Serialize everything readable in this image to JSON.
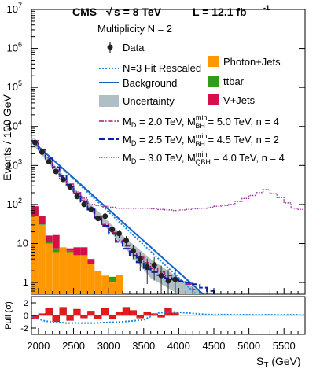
{
  "header": {
    "experiment": "CMS",
    "energy_prefix": "s = 8 TeV",
    "luminosity": "L = 12.1 fb",
    "luminosity_sup": "-1"
  },
  "colors": {
    "data": "#222222",
    "fit": "#1e88e5",
    "background": "#1565c0",
    "uncertainty": "#b0bec5",
    "photon_jets": "#ff9800",
    "ttbar": "#2e9d18",
    "v_jets": "#d50f4a",
    "bh1": "#b0156e",
    "bh2": "#0b1fa8",
    "qbh": "#a239a0",
    "pull": "#e41a1c"
  },
  "chart_data": [
    {
      "type": "bar",
      "title": "Multiplicity N = 2",
      "ylabel": "Events / 100 GeV",
      "xlabel": "S",
      "xlabel_sub": "T",
      "xlabel_unit": " (GeV)",
      "xlim": [
        1900,
        5800
      ],
      "ylim": [
        0.5,
        10000000
      ],
      "yscale": "log",
      "stacked_histogram": {
        "bin_width": 100,
        "bin_starts": [
          1900,
          2000,
          2100,
          2200,
          2300,
          2400,
          2500,
          2600,
          2700,
          2800,
          2900,
          3000,
          3100,
          3200
        ],
        "series": [
          {
            "name": "Photon+Jets",
            "values": [
              50,
              30,
              10,
              6,
              8,
              6,
              5,
              5,
              3,
              2,
              1.5,
              1,
              1.6,
              0
            ]
          },
          {
            "name": "ttbar",
            "values": [
              0,
              1,
              1,
              1.5,
              0,
              0.5,
              0,
              0,
              0,
              0,
              0,
              0.4,
              0,
              0
            ]
          },
          {
            "name": "V+Jets",
            "values": [
              40,
              20,
              5,
              9,
              0,
              1,
              3,
              3,
              1,
              0,
              0,
              0,
              0,
              0
            ]
          }
        ]
      },
      "data_points": [
        {
          "x": 1950,
          "y": 3900
        },
        {
          "x": 2050,
          "y": 2200
        },
        {
          "x": 2150,
          "y": 1250
        },
        {
          "x": 2250,
          "y": 700
        },
        {
          "x": 2350,
          "y": 440
        },
        {
          "x": 2450,
          "y": 280
        },
        {
          "x": 2550,
          "y": 160
        },
        {
          "x": 2650,
          "y": 100
        },
        {
          "x": 2750,
          "y": 75
        },
        {
          "x": 2850,
          "y": 44
        },
        {
          "x": 2950,
          "y": 50
        },
        {
          "x": 3050,
          "y": 23
        },
        {
          "x": 3150,
          "y": 18
        },
        {
          "x": 3250,
          "y": 12
        },
        {
          "x": 3350,
          "y": 6.5
        },
        {
          "x": 3450,
          "y": 4
        },
        {
          "x": 3550,
          "y": 2.5
        },
        {
          "x": 3650,
          "y": 2.8
        },
        {
          "x": 3750,
          "y": 1.5
        },
        {
          "x": 3850,
          "y": 1.1
        },
        {
          "x": 3950,
          "y": 1.2
        }
      ],
      "fit_curve": {
        "x": [
          1900,
          4250
        ],
        "y": [
          4600,
          0.5
        ]
      },
      "background_curve": {
        "x": [
          1900,
          4350
        ],
        "y": [
          4400,
          0.5
        ]
      },
      "uncertainty_band": {
        "x": [
          1900,
          2500,
          3200,
          3600,
          4000,
          4300
        ],
        "lower": [
          3800,
          200,
          9,
          1.3,
          0.5,
          0.5
        ],
        "upper": [
          5000,
          280,
          16,
          4,
          1.3,
          0.6
        ]
      },
      "signal_curves": [
        {
          "name": "M_D = 2.0 TeV, M_BH^min = 5.0 TeV, n = 4",
          "x": [
            1900,
            2500,
            3100,
            3600,
            3900,
            4100,
            4300
          ],
          "y": [
            4300,
            200,
            12,
            2.3,
            1.2,
            0.9,
            0.5
          ]
        },
        {
          "name": "M_D = 2.5 TeV, M_BH^min = 4.5 TeV, n = 2",
          "x": [
            1900,
            2500,
            3100,
            3500,
            3800,
            4200,
            4500
          ],
          "y": [
            4200,
            190,
            11,
            2.2,
            1.3,
            0.9,
            0.5
          ]
        },
        {
          "name": "M_D = 3.0 TeV, M_QBH^min = 4.0 TeV, n = 4",
          "x": [
            1900,
            2300,
            2700,
            3100,
            3500,
            3900,
            4300,
            4700,
            5000,
            5200,
            5400,
            5600,
            5800
          ],
          "y": [
            4000,
            440,
            100,
            80,
            80,
            70,
            80,
            100,
            170,
            240,
            150,
            80,
            70
          ]
        }
      ],
      "legend": {
        "entries": [
          {
            "key": "data",
            "label": "Data"
          },
          {
            "key": "fit",
            "label": "N=3 Fit Rescaled"
          },
          {
            "key": "background",
            "label": "Background"
          },
          {
            "key": "uncertainty",
            "label": "Uncertainty"
          },
          {
            "key": "photon_jets",
            "label": "Photon+Jets"
          },
          {
            "key": "ttbar",
            "label": "ttbar"
          },
          {
            "key": "v_jets",
            "label": "V+Jets"
          }
        ],
        "signals": [
          {
            "pre": "M",
            "sub1": "D",
            "mid": " = 2.0 TeV, M",
            "sup2": "min",
            "sub2": "BH",
            "post": " = 5.0 TeV, n = 4"
          },
          {
            "pre": "M",
            "sub1": "D",
            "mid": " = 2.5 TeV, M",
            "sup2": "min",
            "sub2": "BH",
            "post": " = 4.5 TeV, n = 2"
          },
          {
            "pre": "M",
            "sub1": "D",
            "mid": " = 3.0 TeV, M",
            "sup2": "min",
            "sub2": "QBH",
            "post": " = 4.0 TeV, n = 4"
          }
        ]
      },
      "y_ticks": [
        {
          "value": 1,
          "label": "1"
        },
        {
          "value": 10,
          "label": "10"
        },
        {
          "base": "10",
          "exp": "2",
          "value": 100
        },
        {
          "base": "10",
          "exp": "3",
          "value": 1000
        },
        {
          "base": "10",
          "exp": "4",
          "value": 10000
        },
        {
          "base": "10",
          "exp": "5",
          "value": 100000
        },
        {
          "base": "10",
          "exp": "6",
          "value": 1000000
        },
        {
          "base": "10",
          "exp": "7",
          "value": 10000000
        }
      ],
      "x_ticks": [
        "2000",
        "2500",
        "3000",
        "3500",
        "4000",
        "4500",
        "5000",
        "5500"
      ]
    },
    {
      "type": "bar",
      "ylabel": "Pull (σ)",
      "ylim": [
        -3,
        3
      ],
      "y_ticks": [
        "-2",
        "0",
        "2"
      ],
      "bin_starts": [
        1900,
        2000,
        2100,
        2200,
        2300,
        2400,
        2500,
        2600,
        2700,
        2800,
        2900,
        3000,
        3100,
        3200,
        3300,
        3400,
        3500,
        3600,
        3700,
        3800,
        3900
      ],
      "pulls": [
        -0.6,
        0.3,
        1.1,
        -1.0,
        1.3,
        -0.8,
        1.0,
        -0.4,
        0.7,
        -0.6,
        1.1,
        -0.5,
        0.6,
        1.3,
        0.8,
        -0.4,
        0.5,
        0.3,
        -0.3,
        1.1,
        0.4
      ],
      "fit_pull_curve": {
        "x": [
          1900,
          2100,
          2400,
          2800,
          3200,
          3500,
          3700,
          3900,
          4400,
          5800
        ],
        "y": [
          -0.2,
          -0.9,
          -1.2,
          -1.2,
          -1.0,
          -0.7,
          0.4,
          0.6,
          0.15,
          0.1
        ]
      }
    }
  ]
}
